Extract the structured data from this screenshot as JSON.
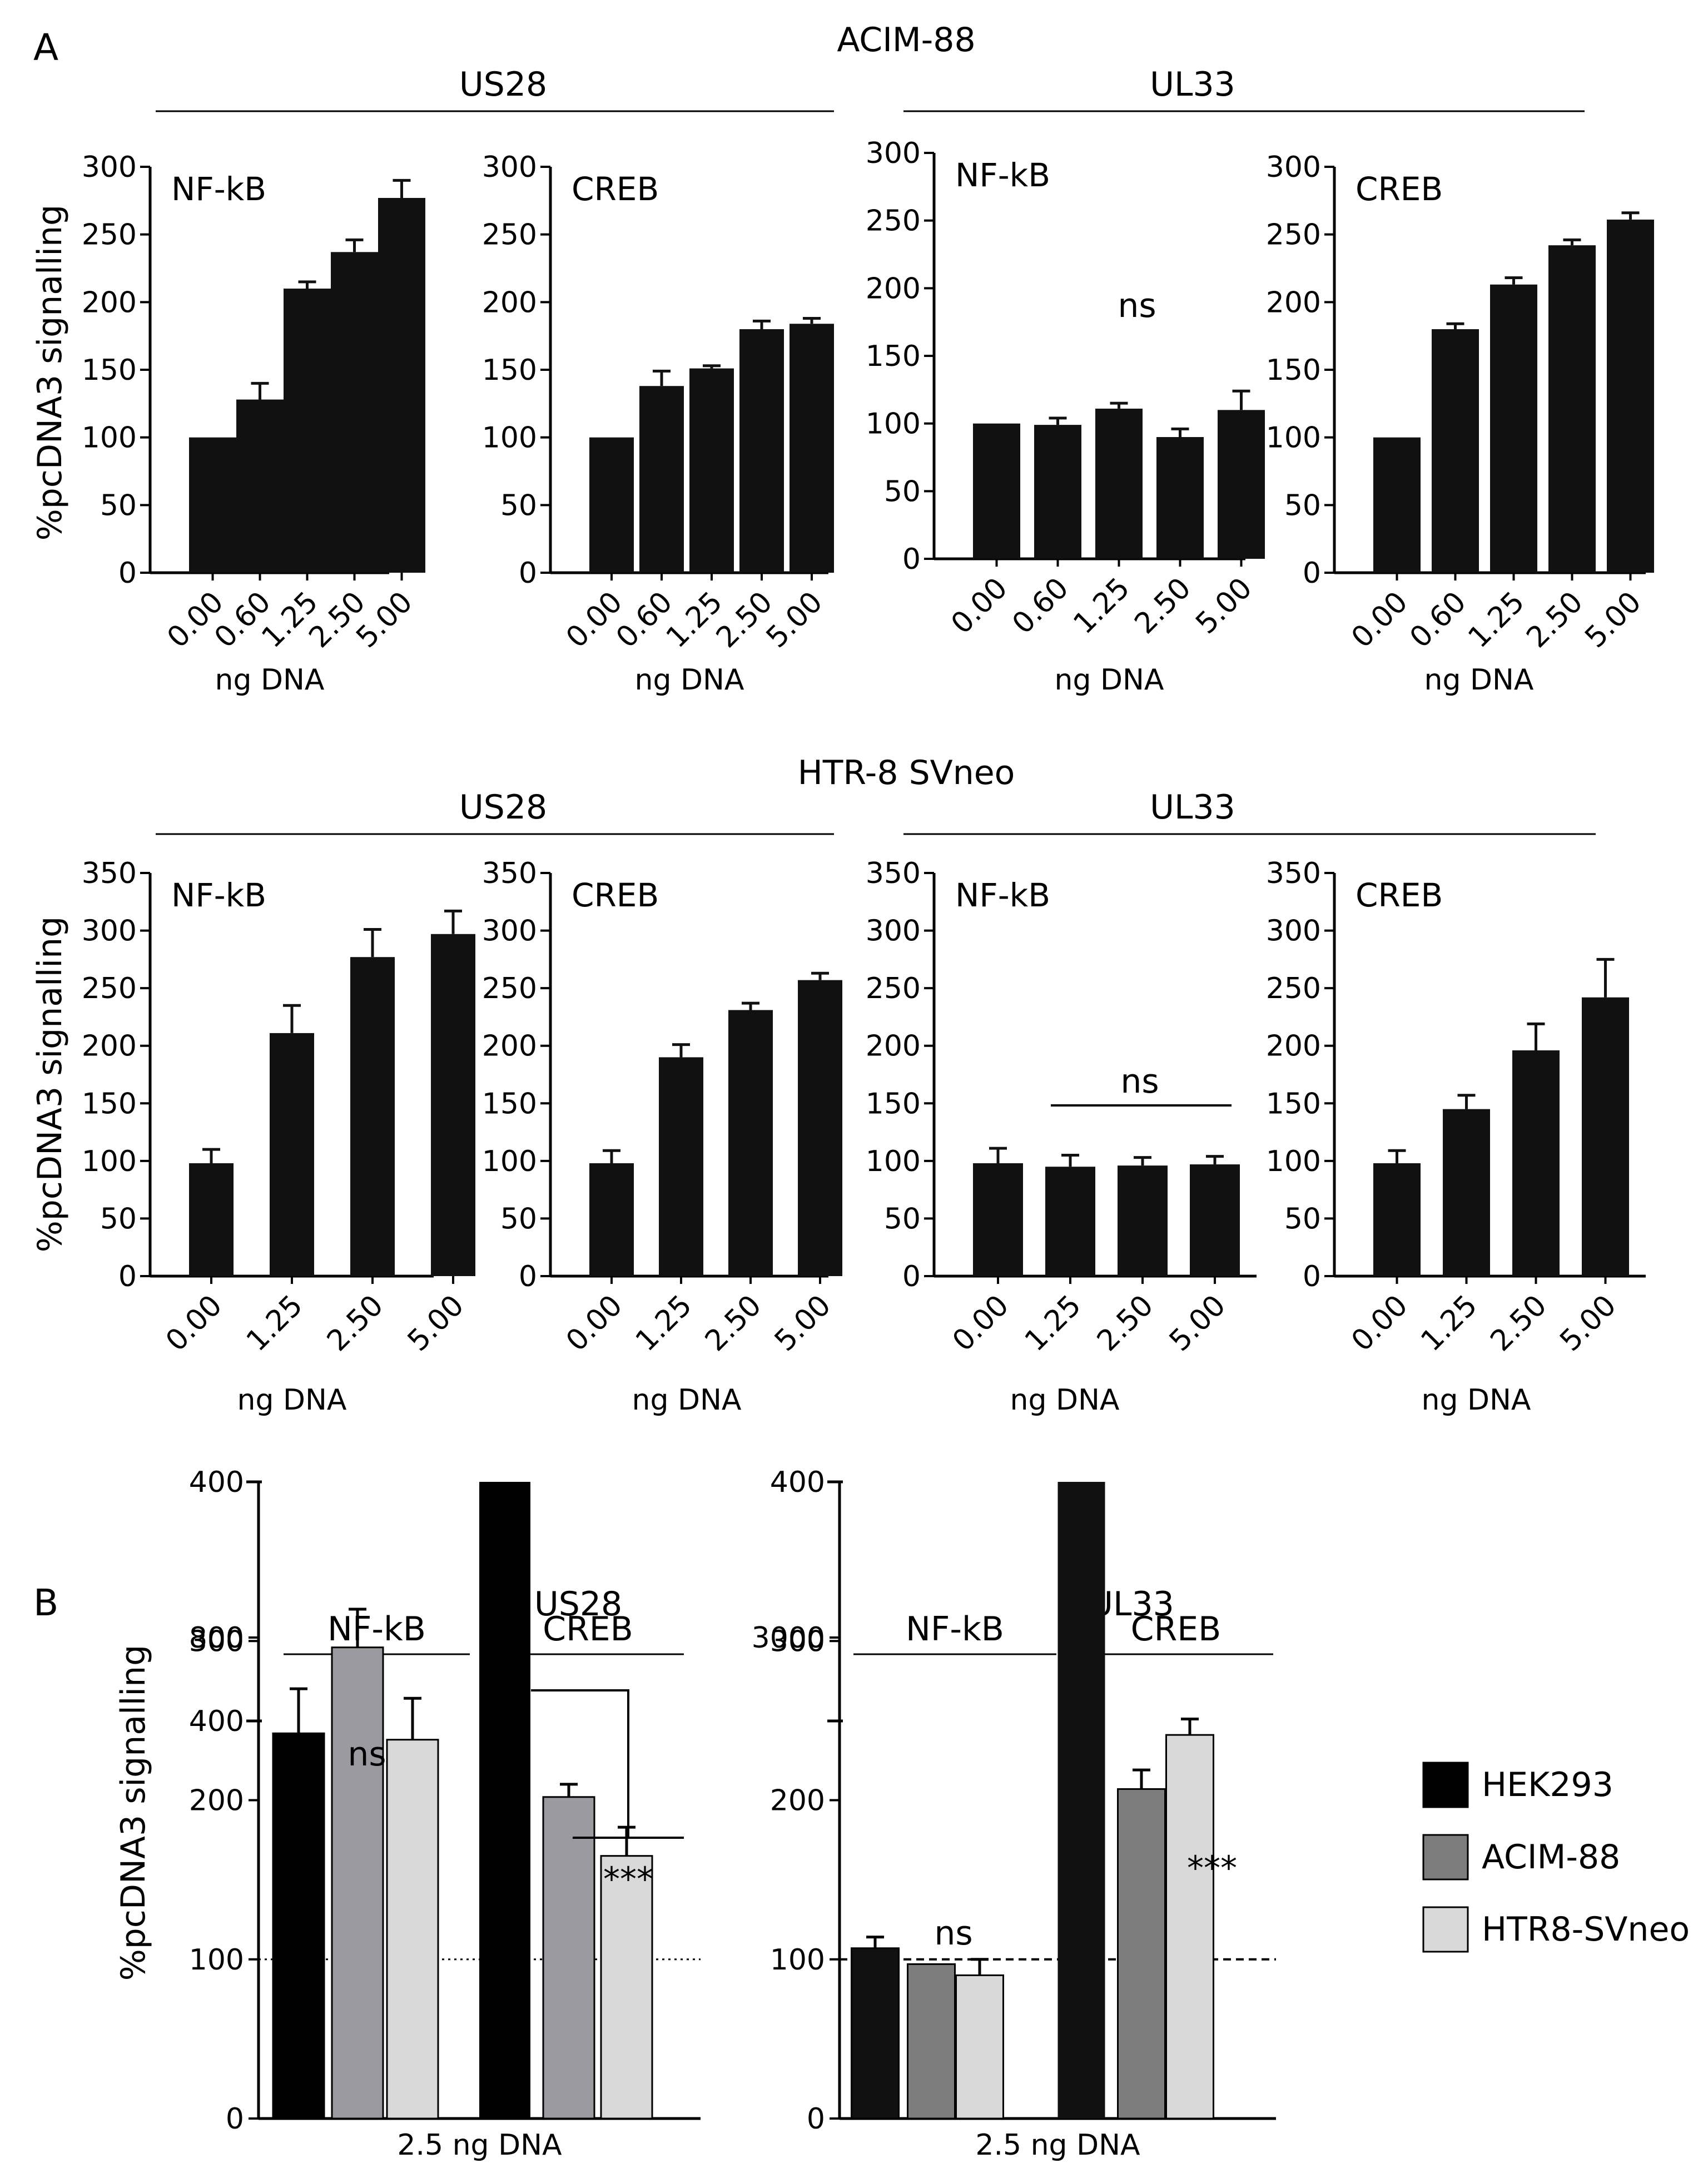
{
  "figure": {
    "panel_a_label": "A",
    "panel_b_label": "B",
    "row1_cell_line": "ACIM-88",
    "row2_cell_line": "HTR-8 SVneo",
    "receptor_us28": "US28",
    "receptor_ul33": "UL33",
    "y_axis_label": "%pcDNA3 signalling",
    "x_axis_label": "ng DNA",
    "b_x_axis_label": "2.5 ng DNA"
  },
  "chart_data": [
    {
      "id": "A1-US28-NFkB",
      "type": "bar",
      "cell_line": "ACIM-88",
      "receptor": "US28",
      "reporter": "NF-kB",
      "categories": [
        "0.00",
        "0.60",
        "1.25",
        "2.50",
        "5.00"
      ],
      "values": [
        100,
        128,
        210,
        237,
        277
      ],
      "errors": [
        0,
        12,
        5,
        9,
        13
      ],
      "ylim": [
        0,
        300
      ],
      "yticks": [
        0,
        50,
        100,
        150,
        200,
        250,
        300
      ],
      "xlabel": "ng DNA",
      "ylabel": "%pcDNA3 signalling",
      "annotation": ""
    },
    {
      "id": "A1-US28-CREB",
      "type": "bar",
      "cell_line": "ACIM-88",
      "receptor": "US28",
      "reporter": "CREB",
      "categories": [
        "0.00",
        "0.60",
        "1.25",
        "2.50",
        "5.00"
      ],
      "values": [
        100,
        138,
        151,
        180,
        184
      ],
      "errors": [
        0,
        11,
        2,
        6,
        4
      ],
      "ylim": [
        0,
        300
      ],
      "yticks": [
        0,
        50,
        100,
        150,
        200,
        250,
        300
      ],
      "xlabel": "ng DNA",
      "annotation": ""
    },
    {
      "id": "A1-UL33-NFkB",
      "type": "bar",
      "cell_line": "ACIM-88",
      "receptor": "UL33",
      "reporter": "NF-kB",
      "categories": [
        "0.00",
        "0.60",
        "1.25",
        "2.50",
        "5.00"
      ],
      "values": [
        100,
        99,
        111,
        90,
        110
      ],
      "errors": [
        0,
        5,
        4,
        6,
        14
      ],
      "ylim": [
        0,
        300
      ],
      "yticks": [
        0,
        50,
        100,
        150,
        200,
        250,
        300
      ],
      "xlabel": "ng DNA",
      "annotation": "ns"
    },
    {
      "id": "A1-UL33-CREB",
      "type": "bar",
      "cell_line": "ACIM-88",
      "receptor": "UL33",
      "reporter": "CREB",
      "categories": [
        "0.00",
        "0.60",
        "1.25",
        "2.50",
        "5.00"
      ],
      "values": [
        100,
        180,
        213,
        242,
        261
      ],
      "errors": [
        0,
        4,
        5,
        4,
        5
      ],
      "ylim": [
        0,
        300
      ],
      "yticks": [
        0,
        50,
        100,
        150,
        200,
        250,
        300
      ],
      "xlabel": "ng DNA",
      "annotation": ""
    },
    {
      "id": "A2-US28-NFkB",
      "type": "bar",
      "cell_line": "HTR-8 SVneo",
      "receptor": "US28",
      "reporter": "NF-kB",
      "categories": [
        "0.00",
        "1.25",
        "2.50",
        "5.00"
      ],
      "values": [
        98,
        211,
        277,
        297
      ],
      "errors": [
        12,
        24,
        24,
        20
      ],
      "ylim": [
        0,
        350
      ],
      "yticks": [
        0,
        50,
        100,
        150,
        200,
        250,
        300,
        350
      ],
      "xlabel": "ng DNA",
      "ylabel": "%pcDNA3 signalling",
      "annotation": ""
    },
    {
      "id": "A2-US28-CREB",
      "type": "bar",
      "cell_line": "HTR-8 SVneo",
      "receptor": "US28",
      "reporter": "CREB",
      "categories": [
        "0.00",
        "1.25",
        "2.50",
        "5.00"
      ],
      "values": [
        98,
        190,
        231,
        257
      ],
      "errors": [
        11,
        11,
        6,
        6
      ],
      "ylim": [
        0,
        350
      ],
      "yticks": [
        0,
        50,
        100,
        150,
        200,
        250,
        300,
        350
      ],
      "xlabel": "ng DNA",
      "annotation": ""
    },
    {
      "id": "A2-UL33-NFkB",
      "type": "bar",
      "cell_line": "HTR-8 SVneo",
      "receptor": "UL33",
      "reporter": "NF-kB",
      "categories": [
        "0.00",
        "1.25",
        "2.50",
        "5.00"
      ],
      "values": [
        98,
        95,
        96,
        97
      ],
      "errors": [
        13,
        10,
        7,
        7
      ],
      "ylim": [
        0,
        350
      ],
      "yticks": [
        0,
        50,
        100,
        150,
        200,
        250,
        300,
        350
      ],
      "xlabel": "ng DNA",
      "annotation": "ns"
    },
    {
      "id": "A2-UL33-CREB",
      "type": "bar",
      "cell_line": "HTR-8 SVneo",
      "receptor": "UL33",
      "reporter": "CREB",
      "categories": [
        "0.00",
        "1.25",
        "2.50",
        "5.00"
      ],
      "values": [
        98,
        145,
        196,
        242
      ],
      "errors": [
        11,
        12,
        23,
        33
      ],
      "ylim": [
        0,
        350
      ],
      "yticks": [
        0,
        50,
        100,
        150,
        200,
        250,
        300,
        350
      ],
      "xlabel": "ng DNA",
      "annotation": ""
    },
    {
      "id": "B-US28",
      "type": "bar",
      "title": "US28",
      "broken_axis": true,
      "groups": [
        "NF-kB",
        "CREB"
      ],
      "series": [
        {
          "name": "HEK293",
          "color": "#000000",
          "values": [
            242,
            520
          ],
          "errors": [
            28,
            60
          ]
        },
        {
          "name": "ACIM-88",
          "color": "#9a9aa0",
          "values": [
            296,
            202
          ],
          "errors": [
            24,
            8
          ]
        },
        {
          "name": "HTR8-SVneo",
          "color": "#d9d9d9",
          "values": [
            238,
            165
          ],
          "errors": [
            26,
            18
          ]
        }
      ],
      "lower_ylim": [
        0,
        400
      ],
      "lower_yticks": [
        0,
        100,
        200,
        300,
        400
      ],
      "upper_yticks": [
        400,
        800
      ],
      "baseline": 100,
      "xlabel": "2.5 ng DNA",
      "ylabel": "%pcDNA3 signalling",
      "annotations": {
        "nfkb": "ns",
        "creb": "***"
      }
    },
    {
      "id": "B-UL33",
      "type": "bar",
      "title": "UL33",
      "broken_axis": true,
      "groups": [
        "NF-kB",
        "CREB"
      ],
      "series": [
        {
          "name": "HEK293",
          "color": "#111111",
          "values": [
            107,
            2650
          ],
          "errors": [
            7,
            0
          ]
        },
        {
          "name": "ACIM-88",
          "color": "#7d7d7d",
          "values": [
            97,
            207
          ],
          "errors": [
            0,
            12
          ]
        },
        {
          "name": "HTR8-SVneo",
          "color": "#d9d9d9",
          "values": [
            90,
            241
          ],
          "errors": [
            10,
            10
          ]
        }
      ],
      "lower_ylim": [
        0,
        400
      ],
      "lower_yticks": [
        0,
        100,
        200,
        300,
        400
      ],
      "upper_yticks": [
        3000
      ],
      "baseline": 100,
      "xlabel": "2.5 ng DNA",
      "ylabel": "",
      "annotations": {
        "nfkb": "ns",
        "creb": "***"
      }
    }
  ],
  "legend": [
    {
      "label": "HEK293",
      "color": "#000000"
    },
    {
      "label": "ACIM-88",
      "color": "#7d7d7d"
    },
    {
      "label": "HTR8-SVneo",
      "color": "#d9d9d9"
    }
  ]
}
